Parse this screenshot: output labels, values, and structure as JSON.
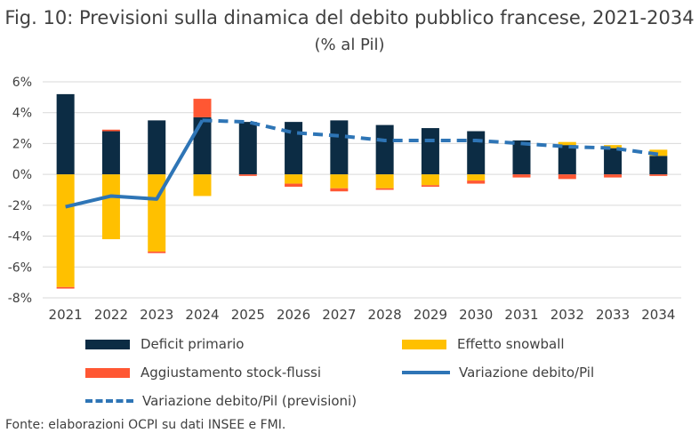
{
  "header": {
    "title": "Fig. 10: Previsioni sulla dinamica del debito pubblico francese, 2021-2034",
    "subtitle": "(% al Pil)"
  },
  "source": "Fonte: elaborazioni OCPI su dati INSEE e FMI.",
  "colors": {
    "deficit": "#0c2c44",
    "snowball": "#ffc000",
    "stock": "#ff5733",
    "line": "#2e75b6",
    "grid": "#d9d9d9"
  },
  "legend": {
    "deficit": "Deficit primario",
    "snowball": "Effetto snowball",
    "stock": "Aggiustamento stock-flussi",
    "line": "Variazione debito/Pil",
    "dashed": "Variazione debito/Pil (previsioni)"
  },
  "chart_data": {
    "type": "bar",
    "title": "Fig. 10: Previsioni sulla dinamica del debito pubblico francese, 2021-2034",
    "subtitle": "(% al Pil)",
    "stacked": true,
    "categories": [
      "2021",
      "2022",
      "2023",
      "2024",
      "2025",
      "2026",
      "2027",
      "2028",
      "2029",
      "2030",
      "2031",
      "2032",
      "2033",
      "2034"
    ],
    "ylim": [
      -8,
      6
    ],
    "yticks": [
      -8,
      -6,
      -4,
      -2,
      0,
      2,
      4,
      6
    ],
    "ytick_labels": [
      "-8%",
      "-6%",
      "-4%",
      "-2%",
      "0%",
      "2%",
      "4%",
      "6%"
    ],
    "grid": true,
    "series": [
      {
        "name": "Deficit primario",
        "kind": "bar",
        "values": [
          5.2,
          2.8,
          3.5,
          3.7,
          3.4,
          3.4,
          3.5,
          3.2,
          3.0,
          2.8,
          2.2,
          1.9,
          1.7,
          1.2
        ]
      },
      {
        "name": "Effetto snowball",
        "kind": "bar",
        "values": [
          -7.3,
          -4.2,
          -5.0,
          -1.4,
          0.0,
          -0.6,
          -0.9,
          -0.9,
          -0.7,
          -0.4,
          0.0,
          0.2,
          0.2,
          0.4
        ]
      },
      {
        "name": "Aggiustamento stock-flussi",
        "kind": "bar",
        "values": [
          -0.1,
          0.1,
          -0.1,
          1.2,
          -0.1,
          -0.2,
          -0.2,
          -0.1,
          -0.1,
          -0.2,
          -0.2,
          -0.3,
          -0.2,
          -0.1
        ]
      },
      {
        "name": "Variazione debito/Pil",
        "kind": "line",
        "values": [
          -2.1,
          -1.4,
          -1.6,
          3.5,
          null,
          null,
          null,
          null,
          null,
          null,
          null,
          null,
          null,
          null
        ]
      },
      {
        "name": "Variazione debito/Pil (previsioni)",
        "kind": "dashed",
        "values": [
          null,
          null,
          null,
          3.5,
          3.4,
          2.7,
          2.5,
          2.2,
          2.2,
          2.2,
          2.0,
          1.8,
          1.7,
          1.3
        ]
      }
    ]
  }
}
